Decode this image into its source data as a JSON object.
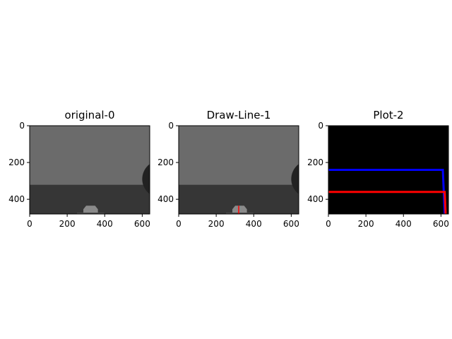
{
  "chart_data": [
    {
      "type": "image",
      "title": "original-0",
      "xlim": [
        0,
        640
      ],
      "ylim": [
        480,
        0
      ],
      "xticks": [
        0,
        200,
        400,
        600
      ],
      "yticks": [
        0,
        200,
        400
      ],
      "scene": {
        "upper_color": "#6b6b6b",
        "lower_color": "#363636",
        "horizon_y": 320,
        "object_color": "#8a8a8a",
        "object_x": [
          290,
          360
        ],
        "object_y": [
          435,
          480
        ],
        "circle_color": "#222222",
        "circle_center": [
          700,
          290
        ],
        "circle_radius": 100
      }
    },
    {
      "type": "image",
      "title": "Draw-Line-1",
      "xlim": [
        0,
        640
      ],
      "ylim": [
        480,
        0
      ],
      "xticks": [
        0,
        200,
        400,
        600
      ],
      "yticks": [
        0,
        200,
        400
      ],
      "scene": {
        "upper_color": "#6b6b6b",
        "lower_color": "#363636",
        "horizon_y": 320,
        "object_color": "#8a8a8a",
        "object_x": [
          290,
          360
        ],
        "object_y": [
          435,
          480
        ],
        "circle_color": "#222222",
        "circle_center": [
          700,
          290
        ],
        "circle_radius": 100
      },
      "drawn_line": {
        "color": "#ff0000",
        "x": 320,
        "y": [
          435,
          480
        ]
      }
    },
    {
      "type": "line",
      "title": "Plot-2",
      "background": "#000000",
      "xlim": [
        0,
        640
      ],
      "ylim": [
        480,
        0
      ],
      "xticks": [
        0,
        200,
        400,
        600
      ],
      "yticks": [
        0,
        200,
        400
      ],
      "series": [
        {
          "color": "#0000ff",
          "x": [
            0,
            610,
            620
          ],
          "y": [
            240,
            240,
            480
          ]
        },
        {
          "color": "#ff0000",
          "x": [
            0,
            620,
            625
          ],
          "y": [
            360,
            360,
            480
          ]
        }
      ]
    }
  ]
}
